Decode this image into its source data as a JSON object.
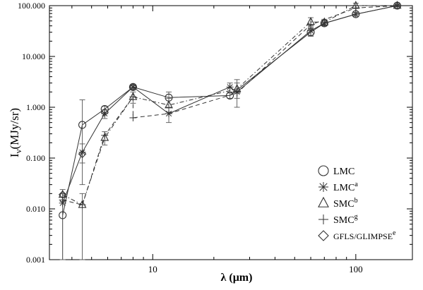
{
  "chart_data": {
    "type": "line",
    "xscale": "log",
    "yscale": "log",
    "xlim": [
      3.1,
      190
    ],
    "ylim": [
      0.001,
      100
    ],
    "x_ticks": [
      10,
      100
    ],
    "x_tick_labels": [
      "10",
      "100"
    ],
    "y_ticks": [
      0.001,
      0.01,
      0.1,
      1,
      10,
      100
    ],
    "y_tick_labels": [
      "0.001",
      "0.010",
      "0.100",
      "1.000",
      "10.000",
      "100.000"
    ],
    "xlabel": "λ (μm)",
    "ylabel": {
      "base": "I",
      "sub": "ν",
      "rest": "(MJy/sr)"
    },
    "legend_position": "lower-right",
    "legend": [
      {
        "marker": "circle",
        "label": "LMC",
        "sup": ""
      },
      {
        "marker": "asterisk",
        "label": "LMC",
        "sup": "a"
      },
      {
        "marker": "triangle",
        "label": "SMC",
        "sup": "b"
      },
      {
        "marker": "plus",
        "label": "SMC",
        "sup": "g"
      },
      {
        "marker": "diamond",
        "label": "GFLS/GLIMPSE",
        "sup": "e"
      }
    ],
    "series": [
      {
        "name": "LMC",
        "marker": "circle",
        "line": "solid",
        "points": [
          {
            "x": 3.6,
            "y": 0.0075,
            "err": [
              0.001,
              0.02
            ]
          },
          {
            "x": 4.5,
            "y": 0.45,
            "err": [
              0.03,
              1.4
            ]
          },
          {
            "x": 5.8,
            "y": 0.92,
            "err": [
              0.75,
              1.05
            ]
          },
          {
            "x": 8.0,
            "y": 2.5,
            "err": [
              2.3,
              2.7
            ]
          },
          {
            "x": 12.0,
            "y": 1.55,
            "err": [
              1.0,
              2.0
            ]
          },
          {
            "x": 24.0,
            "y": 1.7,
            "err": [
              1.5,
              1.9
            ]
          },
          {
            "x": 60.0,
            "y": 30,
            "err": [
              25,
              36
            ]
          },
          {
            "x": 70.0,
            "y": 45,
            "err": [
              40,
              52
            ]
          },
          {
            "x": 100.0,
            "y": 68,
            "err": [
              62,
              74
            ]
          },
          {
            "x": 160.0,
            "y": 100,
            "err": [
              96,
              104
            ]
          }
        ]
      },
      {
        "name": "LMCa",
        "marker": "asterisk",
        "line": "solid",
        "points": [
          {
            "x": 3.6,
            "y": 0.013,
            "err": [
              0.001,
              0.02
            ]
          },
          {
            "x": 4.5,
            "y": 0.13,
            "err": [
              0.08,
              0.19
            ]
          },
          {
            "x": 5.8,
            "y": 0.75,
            "err": [
              0.6,
              0.9
            ]
          },
          {
            "x": 8.0,
            "y": 2.5,
            "err": [
              2.3,
              2.7
            ]
          },
          {
            "x": 12.0,
            "y": 0.75,
            "err": [
              0.5,
              1.0
            ]
          },
          {
            "x": 24.0,
            "y": 2.5,
            "err": [
              2.0,
              3.0
            ]
          },
          {
            "x": 26.0,
            "y": 2.0,
            "err": [
              1.0,
              3.0
            ]
          },
          {
            "x": 60.0,
            "y": 32,
            "err": [
              26,
              38
            ]
          },
          {
            "x": 70.0,
            "y": 45,
            "err": [
              40,
              52
            ]
          },
          {
            "x": 100.0,
            "y": 68,
            "err": [
              62,
              74
            ]
          },
          {
            "x": 160.0,
            "y": 100,
            "err": [
              96,
              104
            ]
          }
        ]
      },
      {
        "name": "SMCb",
        "marker": "triangle",
        "line": "dashdot",
        "points": [
          {
            "x": 3.6,
            "y": 0.019,
            "err": [
              0.014,
              0.024
            ]
          },
          {
            "x": 4.5,
            "y": 0.012,
            "err": [
              0.001,
              0.02
            ]
          },
          {
            "x": 5.8,
            "y": 0.25,
            "err": [
              0.18,
              0.33
            ]
          },
          {
            "x": 8.0,
            "y": 1.6,
            "err": [
              1.2,
              2.0
            ]
          },
          {
            "x": 12.0,
            "y": 1.1,
            "err": [
              0.8,
              1.5
            ]
          },
          {
            "x": 26.0,
            "y": 2.3,
            "err": [
              1.5,
              3.5
            ]
          },
          {
            "x": 60.0,
            "y": 48,
            "err": [
              40,
              58
            ]
          },
          {
            "x": 70.0,
            "y": 47,
            "err": [
              41,
              54
            ]
          },
          {
            "x": 100.0,
            "y": 100,
            "err": [
              88,
              112
            ]
          },
          {
            "x": 160.0,
            "y": 100,
            "err": [
              96,
              104
            ]
          }
        ]
      },
      {
        "name": "SMCg",
        "marker": "plus",
        "line": "dashed",
        "points": [
          {
            "x": 3.6,
            "y": 0.015,
            "err": null
          },
          {
            "x": 4.5,
            "y": 0.012,
            "err": null
          },
          {
            "x": 5.8,
            "y": 0.28,
            "err": null
          },
          {
            "x": 8.0,
            "y": 1.6,
            "err": null
          },
          {
            "x": 8.0,
            "y": 0.62,
            "err": null
          },
          {
            "x": 12.0,
            "y": 0.75,
            "err": null
          },
          {
            "x": 26.0,
            "y": 1.9,
            "err": null
          },
          {
            "x": 60.0,
            "y": 42,
            "err": null
          },
          {
            "x": 100.0,
            "y": 90,
            "err": null
          },
          {
            "x": 160.0,
            "y": 100,
            "err": null
          }
        ]
      },
      {
        "name": "GFLS/GLIMPSEe",
        "marker": "diamond",
        "line": "none",
        "points": [
          {
            "x": 3.6,
            "y": 0.019,
            "err": null
          },
          {
            "x": 4.5,
            "y": 0.12,
            "err": null
          },
          {
            "x": 5.8,
            "y": 0.8,
            "err": null
          },
          {
            "x": 8.0,
            "y": 2.5,
            "err": null
          }
        ]
      }
    ]
  }
}
